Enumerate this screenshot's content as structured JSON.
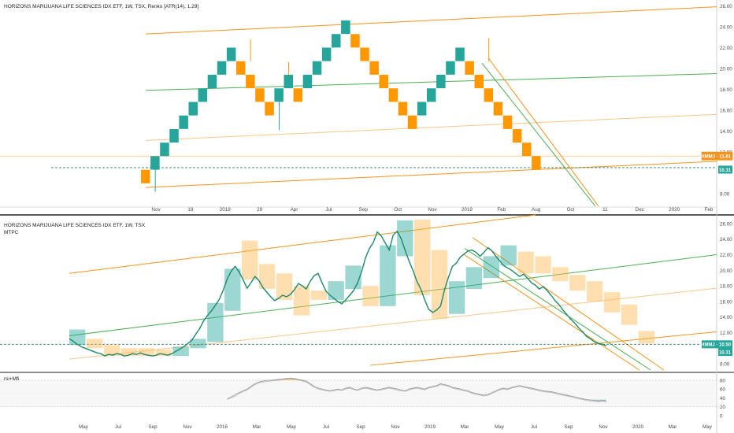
{
  "chart_data": [
    {
      "type": "renko",
      "title": "HORIZONS MARIJUANA LIFE SCIENCES IDX ETF, 1W, TSX, Renko [ATR(14), 1.29]",
      "y_ticks": [
        "8.00",
        "10.50",
        "12.00",
        "14.00",
        "16.00",
        "18.00",
        "20.00",
        "22.00",
        "24.00",
        "26.00"
      ],
      "ylim": [
        6.8,
        26.4
      ],
      "x_ticks": [
        "Nov",
        "18",
        "2018",
        "29",
        "Apr",
        "Jul",
        "Sep",
        "Oct",
        "Nov",
        "2019",
        "Feb",
        "Aug",
        "Oct",
        "11",
        "Dec",
        "2020",
        "Feb"
      ],
      "bricks": [
        {
          "low": 9.0,
          "dir": "down"
        },
        {
          "low": 10.3,
          "dir": "up"
        },
        {
          "low": 11.6,
          "dir": "up"
        },
        {
          "low": 12.9,
          "dir": "up"
        },
        {
          "low": 14.2,
          "dir": "up"
        },
        {
          "low": 15.5,
          "dir": "up"
        },
        {
          "low": 16.8,
          "dir": "up"
        },
        {
          "low": 18.1,
          "dir": "up"
        },
        {
          "low": 19.4,
          "dir": "up"
        },
        {
          "low": 20.7,
          "dir": "up"
        },
        {
          "low": 19.4,
          "dir": "down"
        },
        {
          "low": 18.1,
          "dir": "down"
        },
        {
          "low": 16.8,
          "dir": "down"
        },
        {
          "low": 15.5,
          "dir": "down"
        },
        {
          "low": 16.8,
          "dir": "up"
        },
        {
          "low": 18.1,
          "dir": "up"
        },
        {
          "low": 16.8,
          "dir": "down"
        },
        {
          "low": 18.1,
          "dir": "up"
        },
        {
          "low": 19.4,
          "dir": "up"
        },
        {
          "low": 20.7,
          "dir": "up"
        },
        {
          "low": 22.0,
          "dir": "up"
        },
        {
          "low": 23.3,
          "dir": "up"
        },
        {
          "low": 22.0,
          "dir": "down"
        },
        {
          "low": 20.7,
          "dir": "down"
        },
        {
          "low": 19.4,
          "dir": "down"
        },
        {
          "low": 18.1,
          "dir": "down"
        },
        {
          "low": 16.8,
          "dir": "down"
        },
        {
          "low": 15.5,
          "dir": "down"
        },
        {
          "low": 14.2,
          "dir": "down"
        },
        {
          "low": 15.5,
          "dir": "up"
        },
        {
          "low": 16.8,
          "dir": "up"
        },
        {
          "low": 18.1,
          "dir": "up"
        },
        {
          "low": 19.4,
          "dir": "up"
        },
        {
          "low": 20.7,
          "dir": "up"
        },
        {
          "low": 19.4,
          "dir": "down"
        },
        {
          "low": 18.1,
          "dir": "down"
        },
        {
          "low": 16.8,
          "dir": "down"
        },
        {
          "low": 15.5,
          "dir": "down"
        },
        {
          "low": 14.2,
          "dir": "down"
        },
        {
          "low": 12.9,
          "dir": "down"
        },
        {
          "low": 11.6,
          "dir": "down"
        },
        {
          "low": 10.3,
          "dir": "down"
        }
      ],
      "badges": [
        {
          "text": "HMMJ · 11.61",
          "value": 11.61,
          "color": "#f7931a",
          "outline": true
        },
        {
          "text": "10.50",
          "value": 10.5,
          "color": "#ffffff",
          "outline": false
        },
        {
          "text": "10.31",
          "value": 10.31,
          "color": "#26a69a",
          "outline": false
        }
      ],
      "dashed_level": 10.5
    },
    {
      "type": "line",
      "title": "HORIZONS MARIJUANA LIFE SCIENCES IDX ETF, 1W, TSX",
      "indicator": "MTPC",
      "y_ticks": [
        "8.00",
        "10.00",
        "12.00",
        "14.00",
        "16.00",
        "18.00",
        "20.00",
        "22.00",
        "24.00",
        "26.00"
      ],
      "ylim": [
        7.2,
        26.8
      ],
      "x_ticks": [
        "May",
        "Jul",
        "Sep",
        "Nov",
        "2018",
        "Mar",
        "May",
        "Jul",
        "Sep",
        "Nov",
        "2019",
        "Mar",
        "May",
        "Jul",
        "Sep",
        "Nov",
        "2020",
        "Mar",
        "May"
      ],
      "price": [
        11.2,
        10.9,
        10.5,
        10.2,
        10.0,
        9.8,
        9.6,
        9.4,
        9.3,
        9.0,
        9.2,
        9.1,
        9.3,
        9.2,
        9.0,
        9.1,
        9.3,
        9.2,
        9.4,
        9.2,
        9.1,
        9.0,
        9.1,
        9.3,
        9.2,
        9.1,
        9.3,
        9.6,
        9.9,
        10.2,
        10.6,
        11.0,
        11.8,
        12.5,
        13.5,
        14.2,
        14.8,
        15.5,
        16.3,
        17.5,
        18.9,
        19.9,
        20.5,
        19.8,
        18.8,
        17.7,
        18.4,
        19.2,
        18.7,
        17.8,
        17.2,
        16.6,
        16.1,
        16.4,
        16.8,
        16.6,
        16.9,
        17.5,
        18.3,
        18.0,
        17.6,
        18.6,
        19.3,
        19.6,
        18.4,
        17.3,
        16.8,
        16.4,
        16.0,
        15.7,
        16.2,
        16.8,
        17.4,
        18.4,
        19.8,
        21.6,
        22.8,
        23.6,
        24.9,
        24.4,
        23.5,
        22.6,
        24.5,
        25.0,
        24.1,
        22.6,
        21.2,
        20.0,
        18.6,
        17.6,
        16.2,
        15.0,
        14.6,
        14.9,
        15.4,
        17.5,
        19.1,
        20.5,
        20.9,
        21.7,
        22.1,
        22.5,
        22.6,
        22.3,
        21.8,
        22.3,
        22.9,
        22.5,
        21.8,
        21.2,
        20.6,
        20.3,
        20.0,
        19.6,
        19.2,
        19.5,
        19.0,
        18.4,
        18.1,
        17.6,
        17.9,
        17.4,
        16.8,
        16.1,
        15.6,
        14.9,
        14.3,
        13.7,
        13.2,
        12.6,
        12.1,
        11.5,
        11.2,
        10.8,
        10.6,
        10.5,
        10.31
      ],
      "boxes": [
        {
          "min": 10.4,
          "max": 12.4,
          "up": true
        },
        {
          "min": 10.0,
          "max": 11.2,
          "up": false
        },
        {
          "min": 9.0,
          "max": 10.4,
          "up": false
        },
        {
          "min": 9.0,
          "max": 10.0,
          "up": false
        },
        {
          "min": 9.0,
          "max": 10.0,
          "up": false
        },
        {
          "min": 9.0,
          "max": 9.8,
          "up": false
        },
        {
          "min": 9.0,
          "max": 10.2,
          "up": true
        },
        {
          "min": 10.0,
          "max": 11.2,
          "up": true
        },
        {
          "min": 10.8,
          "max": 15.8,
          "up": true
        },
        {
          "min": 14.8,
          "max": 20.2,
          "up": true
        },
        {
          "min": 18.8,
          "max": 23.8,
          "up": false
        },
        {
          "min": 17.6,
          "max": 20.8,
          "up": false
        },
        {
          "min": 16.2,
          "max": 19.6,
          "up": false
        },
        {
          "min": 14.2,
          "max": 18.0,
          "up": false
        },
        {
          "min": 16.2,
          "max": 17.4,
          "up": false
        },
        {
          "min": 16.2,
          "max": 18.6,
          "up": true
        },
        {
          "min": 17.6,
          "max": 20.6,
          "up": true
        },
        {
          "min": 15.4,
          "max": 18.0,
          "up": false
        },
        {
          "min": 15.4,
          "max": 23.2,
          "up": true
        },
        {
          "min": 21.8,
          "max": 26.4,
          "up": true
        },
        {
          "min": 16.8,
          "max": 26.5,
          "up": false
        },
        {
          "min": 13.8,
          "max": 22.6,
          "up": false
        },
        {
          "min": 14.4,
          "max": 18.6,
          "up": true
        },
        {
          "min": 17.6,
          "max": 20.4,
          "up": true
        },
        {
          "min": 19.0,
          "max": 21.8,
          "up": true
        },
        {
          "min": 20.6,
          "max": 23.2,
          "up": true
        },
        {
          "min": 19.6,
          "max": 22.4,
          "up": false
        },
        {
          "min": 19.6,
          "max": 21.8,
          "up": false
        },
        {
          "min": 18.6,
          "max": 20.4,
          "up": false
        },
        {
          "min": 17.4,
          "max": 19.4,
          "up": false
        },
        {
          "min": 16.0,
          "max": 18.6,
          "up": false
        },
        {
          "min": 14.6,
          "max": 17.2,
          "up": false
        },
        {
          "min": 13.0,
          "max": 15.6,
          "up": false
        },
        {
          "min": 10.6,
          "max": 12.2,
          "up": false
        }
      ],
      "badges": [
        {
          "text": "HMMJ · 10.50",
          "value": 10.5,
          "color": "#26a69a"
        },
        {
          "text": "10.31",
          "value": 10.31,
          "color": "#26a69a"
        }
      ],
      "dashed_level": 10.5
    },
    {
      "type": "line",
      "title": "rsi+Mfi",
      "y_ticks": [
        "0",
        "20",
        "40",
        "60",
        "80"
      ],
      "ylim": [
        -4,
        96
      ],
      "rsi": [
        null,
        null,
        null,
        null,
        null,
        null,
        null,
        null,
        null,
        null,
        null,
        null,
        null,
        null,
        null,
        null,
        null,
        null,
        null,
        null,
        null,
        null,
        null,
        null,
        null,
        null,
        null,
        null,
        null,
        null,
        null,
        null,
        null,
        null,
        null,
        null,
        null,
        null,
        null,
        null,
        38,
        42,
        47,
        52,
        56,
        60,
        66,
        72,
        76,
        78,
        80,
        80,
        81,
        82,
        83,
        84,
        85,
        84,
        82,
        80,
        78,
        72,
        66,
        62,
        60,
        58,
        56,
        58,
        60,
        58,
        62,
        64,
        60,
        58,
        62,
        64,
        62,
        60,
        58,
        60,
        62,
        64,
        62,
        60,
        58,
        56,
        60,
        62,
        64,
        62,
        60,
        64,
        66,
        68,
        72,
        70,
        68,
        64,
        62,
        60,
        58,
        56,
        52,
        50,
        48,
        46,
        48,
        52,
        56,
        60,
        62,
        60,
        64,
        66,
        68,
        66,
        64,
        62,
        60,
        58,
        56,
        55,
        54,
        52,
        50,
        48,
        46,
        44,
        42,
        40,
        38,
        36,
        35,
        34,
        33,
        34,
        33
      ],
      "mfi": [
        null,
        null,
        null,
        null,
        null,
        null,
        null,
        null,
        null,
        null,
        null,
        null,
        null,
        null,
        null,
        null,
        null,
        null,
        null,
        null,
        null,
        null,
        null,
        null,
        null,
        null,
        null,
        null,
        null,
        null,
        null,
        null,
        null,
        null,
        null,
        null,
        null,
        null,
        null,
        null,
        36,
        40,
        44,
        50,
        54,
        58,
        64,
        70,
        74,
        76,
        77,
        78,
        79,
        80,
        81,
        82,
        83,
        82,
        80,
        78,
        76,
        70,
        64,
        60,
        58,
        56,
        55,
        56,
        58,
        57,
        60,
        62,
        59,
        57,
        60,
        62,
        60,
        58,
        57,
        58,
        60,
        62,
        60,
        58,
        56,
        55,
        58,
        60,
        62,
        60,
        58,
        62,
        64,
        66,
        70,
        68,
        66,
        62,
        60,
        58,
        56,
        54,
        50,
        48,
        46,
        44,
        46,
        50,
        54,
        58,
        60,
        58,
        62,
        64,
        66,
        64,
        62,
        60,
        58,
        56,
        54,
        53,
        52,
        50,
        48,
        46,
        44,
        42,
        40,
        38,
        36,
        34,
        33,
        32,
        31,
        32,
        31
      ],
      "hi_band": 80,
      "lo_band": 20
    }
  ],
  "ui": {
    "pane1_title": "HORIZONS MARIJUANA LIFE SCIENCES IDX ETF, 1W, TSX, Renko [ATR(14), 1.29]",
    "pane2_title": "HORIZONS MARIJUANA LIFE SCIENCES IDX ETF, 1W, TSX",
    "pane2_indicator": "MTPC",
    "pane3_title": "rsi+Mfi"
  },
  "colors": {
    "up": "#26a69a",
    "down": "#ff9800",
    "trend_orange": "#f7931a",
    "trend_green": "#4caf50",
    "axis_text": "#4a4a4a",
    "separator": "#222222"
  }
}
